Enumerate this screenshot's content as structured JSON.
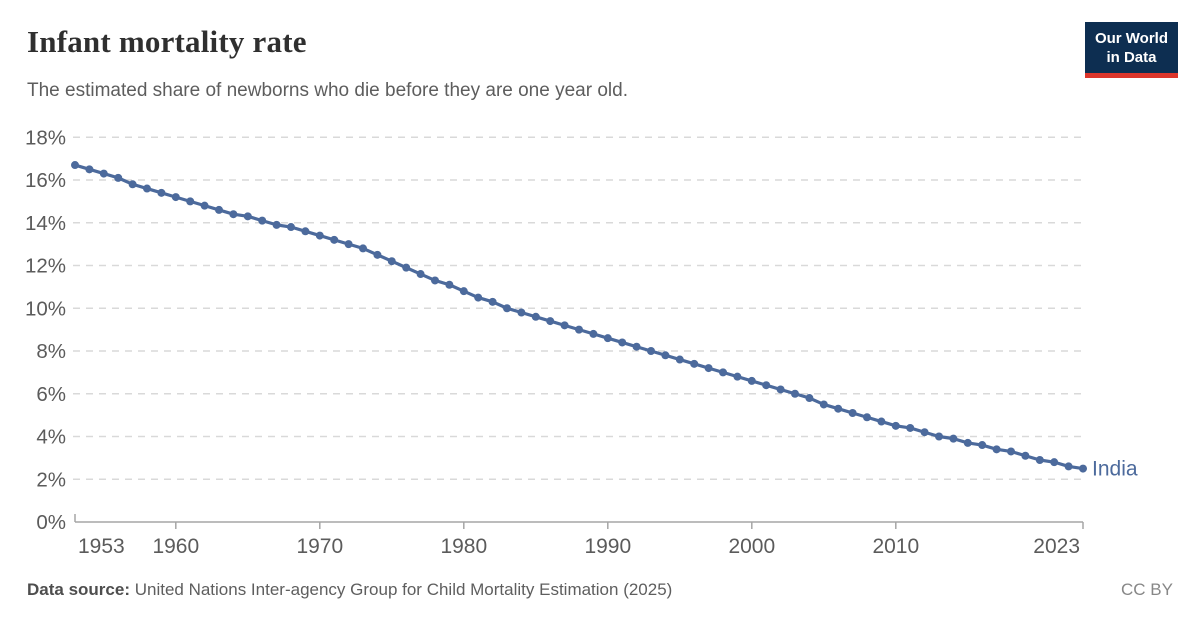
{
  "header": {
    "title": "Infant mortality rate",
    "subtitle": "The estimated share of newborns who die before they are one year old.",
    "logo": {
      "line1": "Our World",
      "line2": "in Data",
      "bg_color": "#0d2e51",
      "accent_color": "#dc352b"
    }
  },
  "chart_data": {
    "type": "line",
    "title": "Infant mortality rate",
    "xlabel": "",
    "ylabel": "",
    "xlim": [
      1953,
      2023
    ],
    "ylim": [
      0,
      18
    ],
    "grid": "horizontal-dashed",
    "legend_position": "end-of-line",
    "x_ticks": [
      1953,
      1960,
      1970,
      1980,
      1990,
      2000,
      2010,
      2023
    ],
    "y_ticks": [
      0,
      2,
      4,
      6,
      8,
      10,
      12,
      14,
      16,
      18
    ],
    "y_tick_suffix": "%",
    "series": [
      {
        "name": "India",
        "color": "#4c6a9c",
        "points": [
          [
            1953,
            16.7
          ],
          [
            1954,
            16.5
          ],
          [
            1955,
            16.3
          ],
          [
            1956,
            16.1
          ],
          [
            1957,
            15.8
          ],
          [
            1958,
            15.6
          ],
          [
            1959,
            15.4
          ],
          [
            1960,
            15.2
          ],
          [
            1961,
            15.0
          ],
          [
            1962,
            14.8
          ],
          [
            1963,
            14.6
          ],
          [
            1964,
            14.4
          ],
          [
            1965,
            14.3
          ],
          [
            1966,
            14.1
          ],
          [
            1967,
            13.9
          ],
          [
            1968,
            13.8
          ],
          [
            1969,
            13.6
          ],
          [
            1970,
            13.4
          ],
          [
            1971,
            13.2
          ],
          [
            1972,
            13.0
          ],
          [
            1973,
            12.8
          ],
          [
            1974,
            12.5
          ],
          [
            1975,
            12.2
          ],
          [
            1976,
            11.9
          ],
          [
            1977,
            11.6
          ],
          [
            1978,
            11.3
          ],
          [
            1979,
            11.1
          ],
          [
            1980,
            10.8
          ],
          [
            1981,
            10.5
          ],
          [
            1982,
            10.3
          ],
          [
            1983,
            10.0
          ],
          [
            1984,
            9.8
          ],
          [
            1985,
            9.6
          ],
          [
            1986,
            9.4
          ],
          [
            1987,
            9.2
          ],
          [
            1988,
            9.0
          ],
          [
            1989,
            8.8
          ],
          [
            1990,
            8.6
          ],
          [
            1991,
            8.4
          ],
          [
            1992,
            8.2
          ],
          [
            1993,
            8.0
          ],
          [
            1994,
            7.8
          ],
          [
            1995,
            7.6
          ],
          [
            1996,
            7.4
          ],
          [
            1997,
            7.2
          ],
          [
            1998,
            7.0
          ],
          [
            1999,
            6.8
          ],
          [
            2000,
            6.6
          ],
          [
            2001,
            6.4
          ],
          [
            2002,
            6.2
          ],
          [
            2003,
            6.0
          ],
          [
            2004,
            5.8
          ],
          [
            2005,
            5.5
          ],
          [
            2006,
            5.3
          ],
          [
            2007,
            5.1
          ],
          [
            2008,
            4.9
          ],
          [
            2009,
            4.7
          ],
          [
            2010,
            4.5
          ],
          [
            2011,
            4.4
          ],
          [
            2012,
            4.2
          ],
          [
            2013,
            4.0
          ],
          [
            2014,
            3.9
          ],
          [
            2015,
            3.7
          ],
          [
            2016,
            3.6
          ],
          [
            2017,
            3.4
          ],
          [
            2018,
            3.3
          ],
          [
            2019,
            3.1
          ],
          [
            2020,
            2.9
          ],
          [
            2021,
            2.8
          ],
          [
            2022,
            2.6
          ],
          [
            2023,
            2.5
          ]
        ]
      }
    ],
    "style": {
      "grid_color": "#d9d9d9",
      "axis_color": "#a5a5a5",
      "tick_label_color": "#5b5b5b"
    }
  },
  "footer": {
    "source_label": "Data source:",
    "source_text": " United Nations Inter-agency Group for Child Mortality Estimation (2025)",
    "license": "CC BY"
  }
}
